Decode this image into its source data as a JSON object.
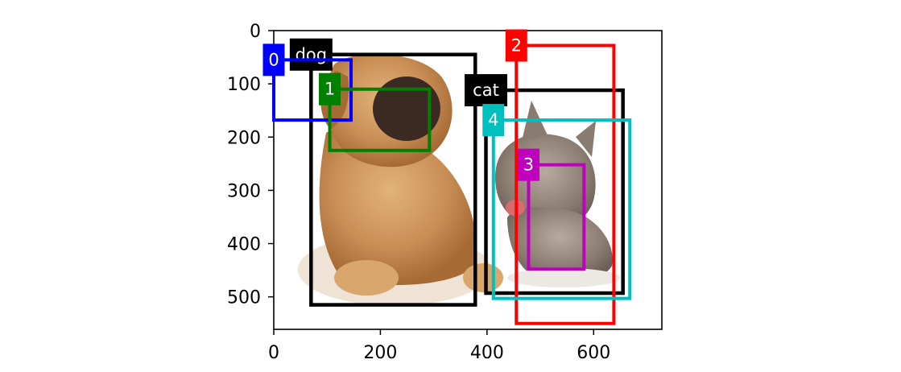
{
  "figure": {
    "x_ticks": [
      "0",
      "200",
      "400",
      "600"
    ],
    "y_ticks": [
      "0",
      "100",
      "200",
      "300",
      "400",
      "500"
    ]
  },
  "photo": {
    "description_icons": [
      "puppy-image",
      "kitten-image"
    ]
  },
  "ground_truth_boxes": [
    {
      "label": "dog",
      "color": "#000000",
      "x0": 70,
      "y0": 45,
      "x1": 378,
      "y1": 515
    },
    {
      "label": "cat",
      "color": "#000000",
      "x0": 398,
      "y0": 112,
      "x1": 655,
      "y1": 493
    }
  ],
  "anchor_boxes": [
    {
      "label": "0",
      "color": "#0000ff",
      "x0": 0,
      "y0": 55,
      "x1": 145,
      "y1": 168
    },
    {
      "label": "1",
      "color": "#008000",
      "x0": 105,
      "y0": 110,
      "x1": 292,
      "y1": 225
    },
    {
      "label": "2",
      "color": "#ff0000",
      "x0": 455,
      "y0": 28,
      "x1": 638,
      "y1": 550
    },
    {
      "label": "3",
      "color": "#bf00bf",
      "x0": 478,
      "y0": 252,
      "x1": 582,
      "y1": 448
    },
    {
      "label": "4",
      "color": "#00bfbf",
      "x0": 412,
      "y0": 168,
      "x1": 668,
      "y1": 503
    }
  ]
}
